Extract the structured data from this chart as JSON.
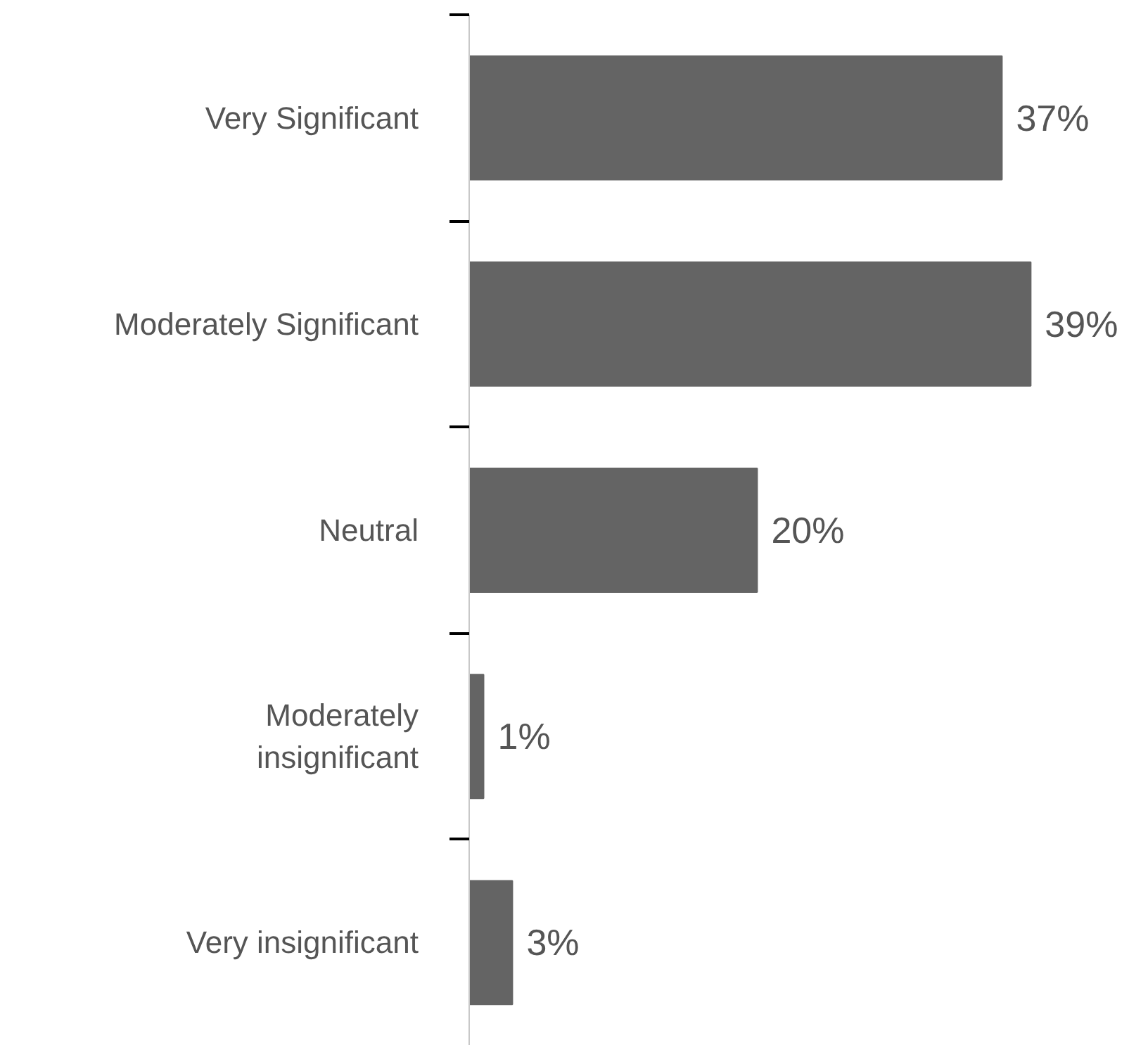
{
  "chart_data": {
    "type": "bar",
    "orientation": "horizontal",
    "categories": [
      "Very Significant",
      "Moderately Significant",
      "Neutral",
      "Moderately\ninsignificant",
      "Very insignificant"
    ],
    "values": [
      37,
      39,
      20,
      1,
      3
    ],
    "color": "#646464",
    "data_labels": true,
    "value_labels": [
      "37%",
      "39%",
      "20%",
      "1%",
      "3%"
    ],
    "tick_labels": "y",
    "grid": false
  }
}
